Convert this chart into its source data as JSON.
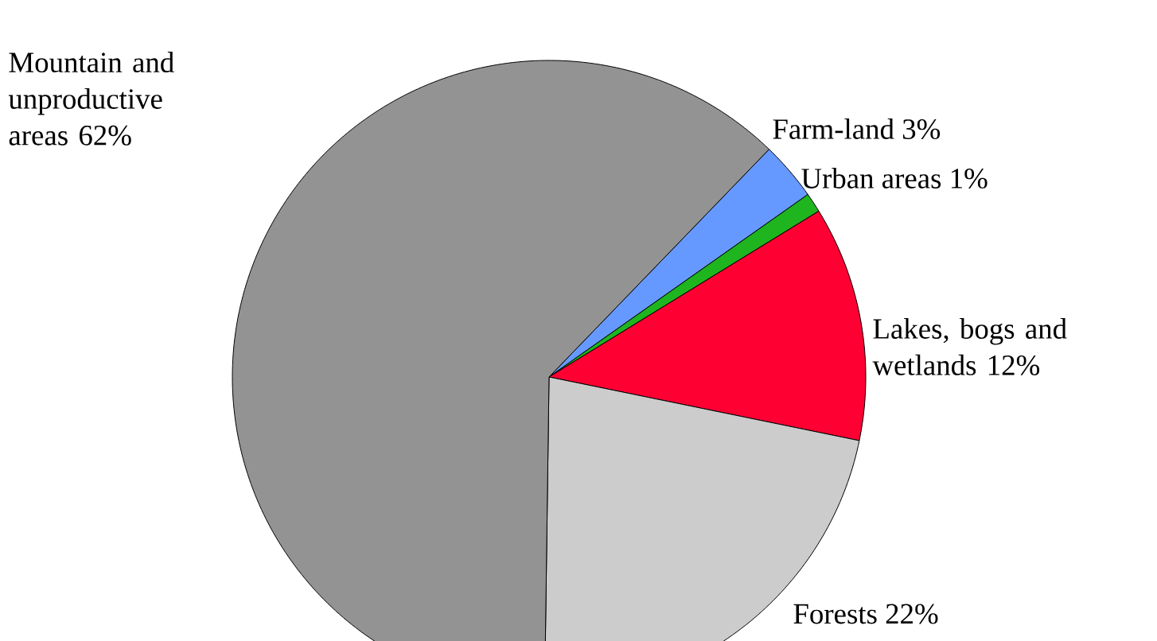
{
  "chart_data": {
    "type": "pie",
    "categories": [
      "Farm-land",
      "Urban areas",
      "Lakes, bogs and wetlands",
      "Forests",
      "Mountain and unproductive areas"
    ],
    "values": [
      3,
      1,
      12,
      22,
      62
    ],
    "value_labels": [
      "3%",
      "1%",
      "12%",
      "22%",
      "62%"
    ],
    "colors": [
      "#6699ff",
      "#1fb51f",
      "#ff0033",
      "#cccccc",
      "#939393"
    ]
  }
}
